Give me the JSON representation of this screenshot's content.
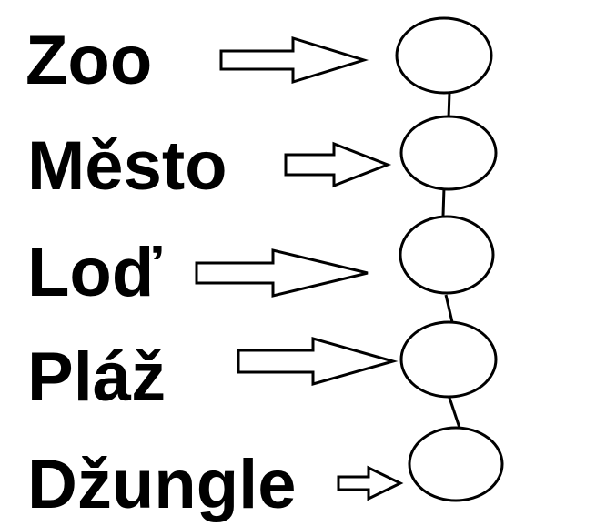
{
  "items": [
    {
      "label": "Zoo"
    },
    {
      "label": "Město"
    },
    {
      "label": "Loď"
    },
    {
      "label": "Pláž"
    },
    {
      "label": "Džungle"
    }
  ],
  "colors": {
    "ink": "#000000",
    "background": "#ffffff"
  }
}
